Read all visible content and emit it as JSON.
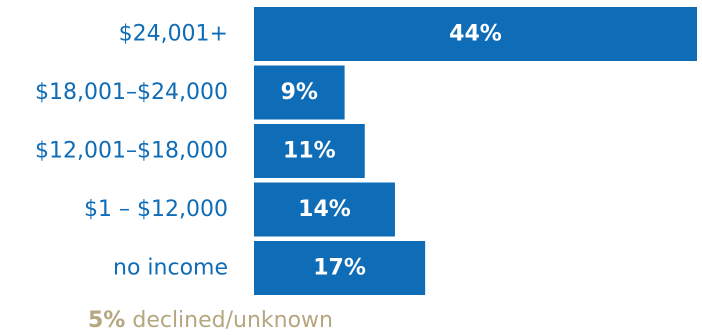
{
  "chart_data": {
    "type": "bar",
    "orientation": "horizontal",
    "categories": [
      "$24,001+",
      "$18,001–$24,000",
      "$12,001–$18,000",
      "$1 – $12,000",
      "no income"
    ],
    "values": [
      44,
      9,
      11,
      14,
      17
    ],
    "data_labels": [
      "44%",
      "9%",
      "11%",
      "14%",
      "17%"
    ],
    "unit": "%",
    "xlim": [
      0,
      44
    ],
    "grid": false,
    "legend": "none",
    "bar_color": "#0f6cb6",
    "label_color": "#0f6cb6",
    "data_label_color": "#ffffff"
  },
  "footnote": {
    "value": "5%",
    "text": " declined/unknown",
    "color": "#b5a77f"
  }
}
